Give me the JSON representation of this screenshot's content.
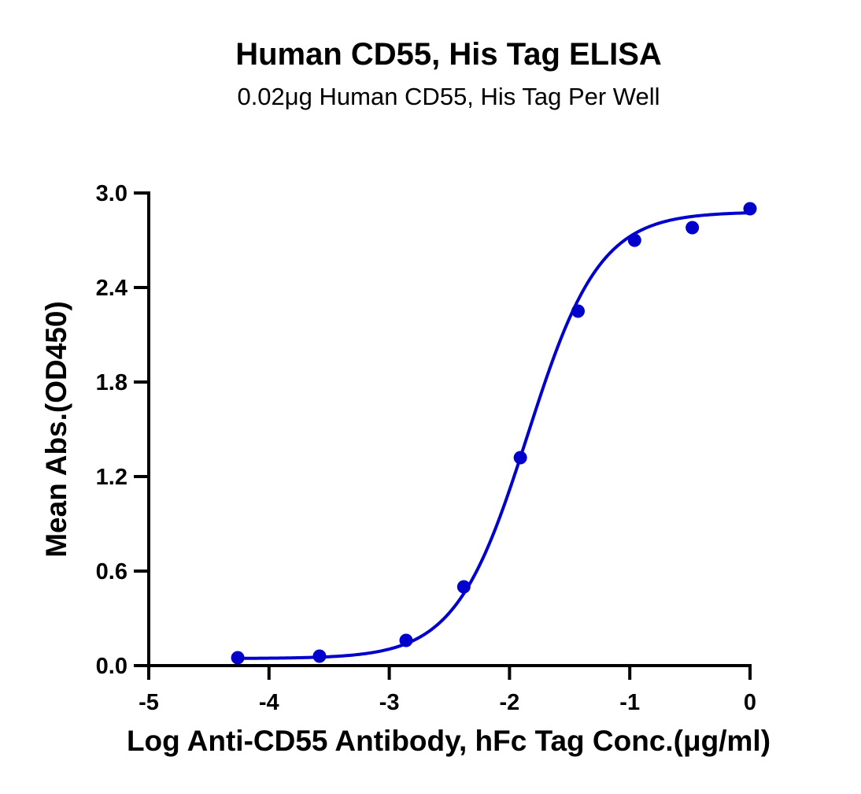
{
  "chart_data": {
    "type": "scatter",
    "title": "Human CD55, His Tag ELISA",
    "subtitle": "0.02μg Human CD55, His Tag Per Well",
    "xlabel": "Log Anti-CD55 Antibody, hFc Tag Conc.(μg/ml)",
    "ylabel": "Mean Abs.(OD450)",
    "xlim": [
      -5,
      0
    ],
    "ylim": [
      0,
      3.0
    ],
    "xticks": [
      -5,
      -4,
      -3,
      -2,
      -1,
      0
    ],
    "xtick_labels": [
      "-5",
      "-4",
      "-3",
      "-2",
      "-1",
      "0"
    ],
    "yticks": [
      0,
      0.6,
      1.2,
      1.8,
      2.4,
      3.0
    ],
    "ytick_labels": [
      "0.0",
      "0.6",
      "1.2",
      "1.8",
      "2.4",
      "3.0"
    ],
    "grid": false,
    "color": "#0000cc",
    "series": [
      {
        "x": [
          -4.26,
          -3.58,
          -2.86,
          -2.38,
          -1.91,
          -1.43,
          -0.96,
          -0.48,
          0.0
        ],
        "y": [
          0.05,
          0.06,
          0.16,
          0.5,
          1.32,
          2.25,
          2.7,
          2.78,
          2.9
        ]
      }
    ],
    "fit": {
      "model": "4PL",
      "bottom": 0.045,
      "top": 2.88,
      "log_ec50": -1.85,
      "hill": 1.45,
      "x_range": [
        -4.26,
        0.0
      ]
    }
  }
}
